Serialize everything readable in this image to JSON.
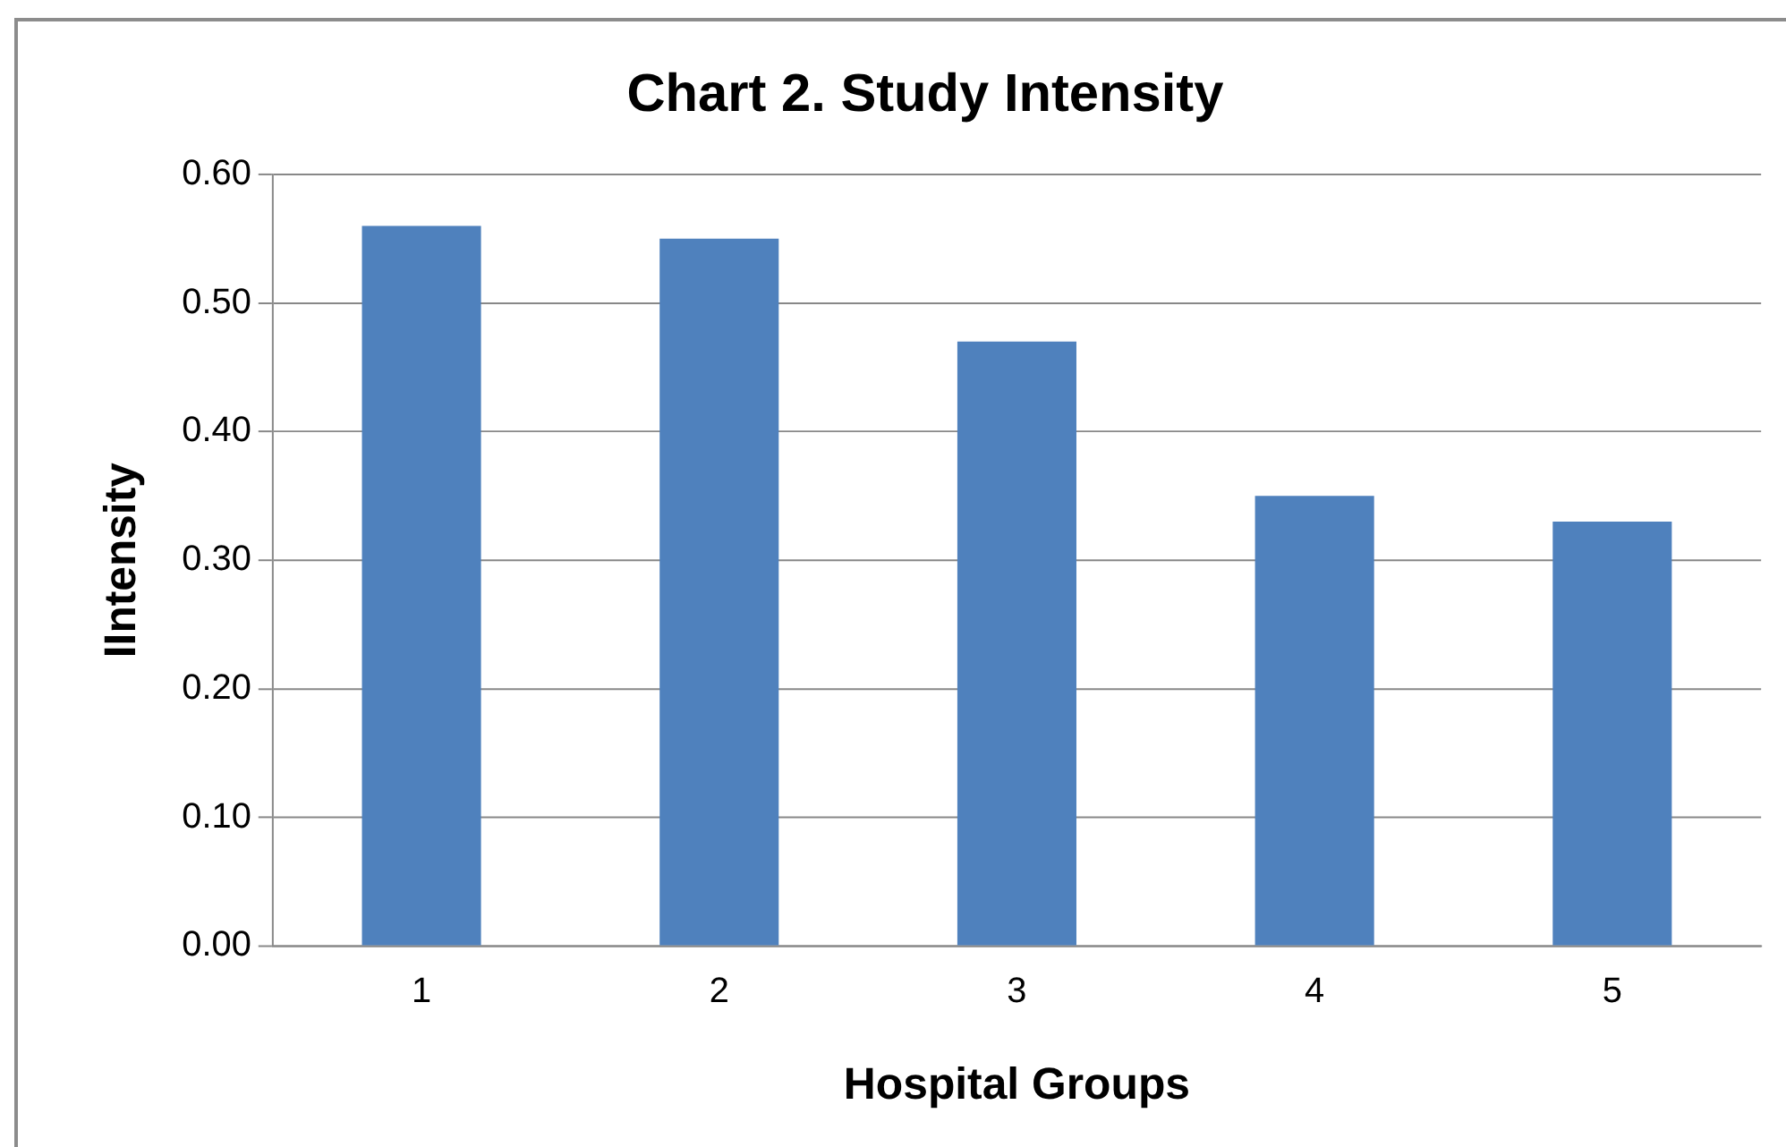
{
  "chart_data": {
    "type": "bar",
    "title": "Chart 2. Study Intensity",
    "xlabel": "Hospital Groups",
    "ylabel": "IIntensity",
    "categories": [
      "1",
      "2",
      "3",
      "4",
      "5"
    ],
    "values": [
      0.56,
      0.55,
      0.47,
      0.35,
      0.33
    ],
    "color": "#4f81bd",
    "ylim": [
      0,
      0.6
    ],
    "yticks": [
      {
        "value": 0,
        "label": "0.00"
      },
      {
        "value": 0.1,
        "label": "0.10"
      },
      {
        "value": 0.2,
        "label": "0.20"
      },
      {
        "value": 0.3,
        "label": "0.30"
      },
      {
        "value": 0.4,
        "label": "0.40"
      },
      {
        "value": 0.5,
        "label": "0.50"
      },
      {
        "value": 0.6,
        "label": "0.60"
      }
    ],
    "grid": "y",
    "legend": false
  }
}
